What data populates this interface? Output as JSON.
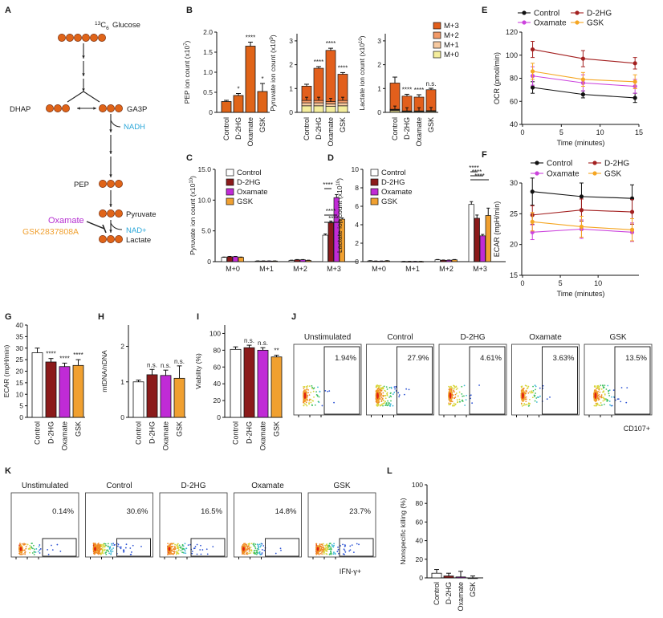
{
  "colors": {
    "control": "#ffffff",
    "d2hg": "#8b1a1a",
    "oxamate": "#c02bd6",
    "gsk": "#f0a030",
    "metab": "#e06418",
    "m3": "#e25f1c",
    "m2": "#f29a68",
    "m1": "#f6c9a0",
    "m0": "#f4ed9c",
    "nadh": "#2aa7d9",
    "oxamate_text": "#b52fd0",
    "gsk_text": "#f0a030",
    "line_control": "#111111",
    "line_d2hg": "#a32020",
    "line_oxamate": "#cc44dd",
    "line_gsk": "#f5a623"
  },
  "panel_labels": [
    "A",
    "B",
    "C",
    "D",
    "E",
    "F",
    "G",
    "H",
    "I",
    "J",
    "K",
    "L"
  ],
  "conditions": [
    "Control",
    "D-2HG",
    "Oxamate",
    "GSK"
  ],
  "panelA": {
    "glucose_label": "Glucose",
    "c13_label": "13C6",
    "dhap": "DHAP",
    "ga3p": "GA3P",
    "nadh": "NADH",
    "pep": "PEP",
    "pyruvate": "Pyruvate",
    "nad": "NAD+",
    "lactate": "Lactate",
    "oxamate": "Oxamate",
    "gsk": "GSK2837808A"
  },
  "panelB": {
    "legend": [
      "M+3",
      "M+2",
      "M+1",
      "M+0"
    ],
    "pep": {
      "ylabel": "PEP ion count (x10^7)",
      "ticks": [
        "0",
        "0.5",
        "1.0",
        "1.5",
        "2.0"
      ],
      "values": [
        0.27,
        0.42,
        1.65,
        0.52
      ],
      "errors": [
        0.03,
        0.05,
        0.1,
        0.2
      ],
      "sig": [
        "",
        "*",
        "****",
        "*"
      ]
    },
    "pyruvate": {
      "ylabel": "Pyruvate ion count (x10^9)",
      "ticks": [
        "0",
        "1",
        "2",
        "3"
      ],
      "m3": [
        0.6,
        1.35,
        2.15,
        1.1
      ],
      "base": [
        0.5,
        0.5,
        0.45,
        0.5
      ],
      "errors": [
        0.08,
        0.07,
        0.09,
        0.07
      ],
      "sig": [
        "",
        "****",
        "****",
        "****"
      ]
    },
    "lactate": {
      "ylabel": "Lactate ion count (x10^10)",
      "ticks": [
        "0",
        "1",
        "2",
        "3"
      ],
      "m3": [
        1.1,
        0.62,
        0.58,
        0.88
      ],
      "base": [
        0.13,
        0.06,
        0.06,
        0.07
      ],
      "errors": [
        0.25,
        0.08,
        0.1,
        0.06
      ],
      "sig": [
        "",
        "****",
        "****",
        "n.s."
      ]
    }
  },
  "panelC": {
    "ylabel": "Pyruvate ion count (x10^10)",
    "ticks": [
      "0",
      "5.0",
      "10.0",
      "15.0"
    ],
    "groups": [
      "M+0",
      "M+1",
      "M+2",
      "M+3"
    ],
    "values": [
      [
        0.7,
        0.8,
        0.8,
        0.7
      ],
      [
        0.1,
        0.1,
        0.1,
        0.1
      ],
      [
        0.2,
        0.3,
        0.3,
        0.2
      ],
      [
        4.3,
        6.3,
        10.4,
        6.9
      ]
    ],
    "errors": [
      [
        0.05,
        0.05,
        0.05,
        0.05
      ],
      [
        0.02,
        0.02,
        0.02,
        0.02
      ],
      [
        0.04,
        0.04,
        0.04,
        0.04
      ],
      [
        0.2,
        0.3,
        0.5,
        0.2
      ]
    ],
    "sig": [
      "****",
      "****",
      "****"
    ]
  },
  "panelD": {
    "ylabel": "Lactate ion count (x10^10)",
    "ticks": [
      "0",
      "2",
      "4",
      "6",
      "8",
      "10"
    ],
    "groups": [
      "M+0",
      "M+1",
      "M+2",
      "M+3"
    ],
    "values": [
      [
        0.08,
        0.05,
        0.05,
        0.08
      ],
      [
        0.02,
        0.02,
        0.02,
        0.02
      ],
      [
        0.2,
        0.15,
        0.15,
        0.2
      ],
      [
        6.2,
        4.7,
        2.8,
        5.0
      ]
    ],
    "errors": [
      [
        0.03,
        0.02,
        0.02,
        0.03
      ],
      [
        0.01,
        0.01,
        0.01,
        0.01
      ],
      [
        0.03,
        0.03,
        0.03,
        0.03
      ],
      [
        0.3,
        0.35,
        0.15,
        0.8
      ]
    ],
    "sig": [
      "****",
      "****",
      "****"
    ]
  },
  "panelE": {
    "ylabel": "OCR (pmol/min)",
    "xlabel": "Time (minutes)",
    "yticks": [
      "40",
      "60",
      "80",
      "100",
      "120"
    ],
    "xticks": [
      "0",
      "5",
      "10",
      "15"
    ],
    "x": [
      1.3,
      7.8,
      14.5
    ],
    "series": [
      {
        "name": "Control",
        "values": [
          72,
          66,
          63
        ],
        "errors": [
          5,
          3,
          4
        ]
      },
      {
        "name": "D-2HG",
        "values": [
          105,
          97,
          93
        ],
        "errors": [
          7,
          7,
          5
        ]
      },
      {
        "name": "Oxamate",
        "values": [
          82,
          76,
          73
        ],
        "errors": [
          8,
          7,
          6
        ]
      },
      {
        "name": "GSK",
        "values": [
          86,
          79,
          77
        ],
        "errors": [
          7,
          6,
          6
        ]
      }
    ]
  },
  "panelF": {
    "ylabel": "ECAR (mpH/min)",
    "xlabel": "Time (minutes)",
    "yticks": [
      "15",
      "20",
      "25",
      "30"
    ],
    "xticks": [
      "0",
      "5",
      "10"
    ],
    "x": [
      1.3,
      7.8,
      14.5
    ],
    "series": [
      {
        "name": "Control",
        "values": [
          28.6,
          27.8,
          27.5
        ],
        "errors": [
          2.2,
          2.2,
          2.2
        ]
      },
      {
        "name": "D-2HG",
        "values": [
          24.8,
          25.6,
          25.3
        ],
        "errors": [
          1.5,
          1.8,
          2.0
        ]
      },
      {
        "name": "Oxamate",
        "values": [
          22.0,
          22.5,
          22.0
        ],
        "errors": [
          1.2,
          1.5,
          1.5
        ]
      },
      {
        "name": "GSK",
        "values": [
          23.7,
          22.9,
          22.4
        ],
        "errors": [
          1.5,
          1.7,
          1.8
        ]
      }
    ]
  },
  "panelG": {
    "ylabel": "ECAR (mpH/min)",
    "ticks": [
      "0",
      "5",
      "10",
      "15",
      "20",
      "25",
      "30",
      "35",
      "40"
    ],
    "values": [
      28,
      24,
      22,
      22.5
    ],
    "errors": [
      2,
      1.5,
      1.5,
      2.5
    ],
    "sig": [
      "",
      "****",
      "****",
      "****"
    ]
  },
  "panelH": {
    "ylabel": "mtDNA/nDNA",
    "ticks": [
      "0",
      "1",
      "2"
    ],
    "values": [
      1.0,
      1.2,
      1.18,
      1.1
    ],
    "errors": [
      0.05,
      0.15,
      0.15,
      0.35
    ],
    "sig": [
      "",
      "n.s.",
      "n.s.",
      "n.s."
    ]
  },
  "panelI": {
    "ylabel": "Viability (%)",
    "ticks": [
      "0",
      "20",
      "40",
      "60",
      "80",
      "100"
    ],
    "values": [
      81,
      83,
      80,
      72
    ],
    "errors": [
      3,
      3,
      3,
      2
    ],
    "sig": [
      "",
      "n.s.",
      "n.s.",
      "**"
    ]
  },
  "panelJ": {
    "titles": [
      "Unstimulated",
      "Control",
      "D-2HG",
      "Oxamate",
      "GSK"
    ],
    "percents": [
      "1.94%",
      "27.9%",
      "4.61%",
      "3.63%",
      "13.5%"
    ],
    "axis_label": "CD107+"
  },
  "panelK": {
    "titles": [
      "Unstimulated",
      "Control",
      "D-2HG",
      "Oxamate",
      "GSK"
    ],
    "percents": [
      "0.14%",
      "30.6%",
      "16.5%",
      "14.8%",
      "23.7%"
    ],
    "axis_label": "IFN-γ+"
  },
  "panelL": {
    "ylabel": "Nonspecific killing (%)",
    "ticks": [
      "0",
      "20",
      "40",
      "60",
      "80",
      "100"
    ],
    "values": [
      5,
      2,
      1,
      0
    ],
    "errors": [
      4,
      3,
      6,
      2
    ],
    "xlabels": [
      "Control",
      "D-2HG",
      "Oxamate",
      "GSK"
    ]
  }
}
